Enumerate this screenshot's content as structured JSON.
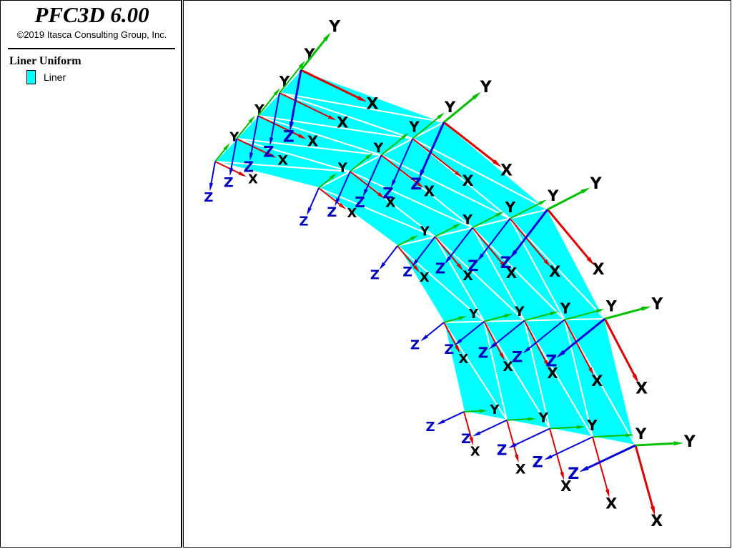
{
  "header": {
    "title": "PFC3D 6.00",
    "copyright": "©2019 Itasca Consulting Group, Inc."
  },
  "legend": {
    "title": "Liner Uniform",
    "items": [
      "Liner"
    ]
  },
  "axis_labels": {
    "x": "X",
    "y": "Y",
    "z": "Z"
  }
}
